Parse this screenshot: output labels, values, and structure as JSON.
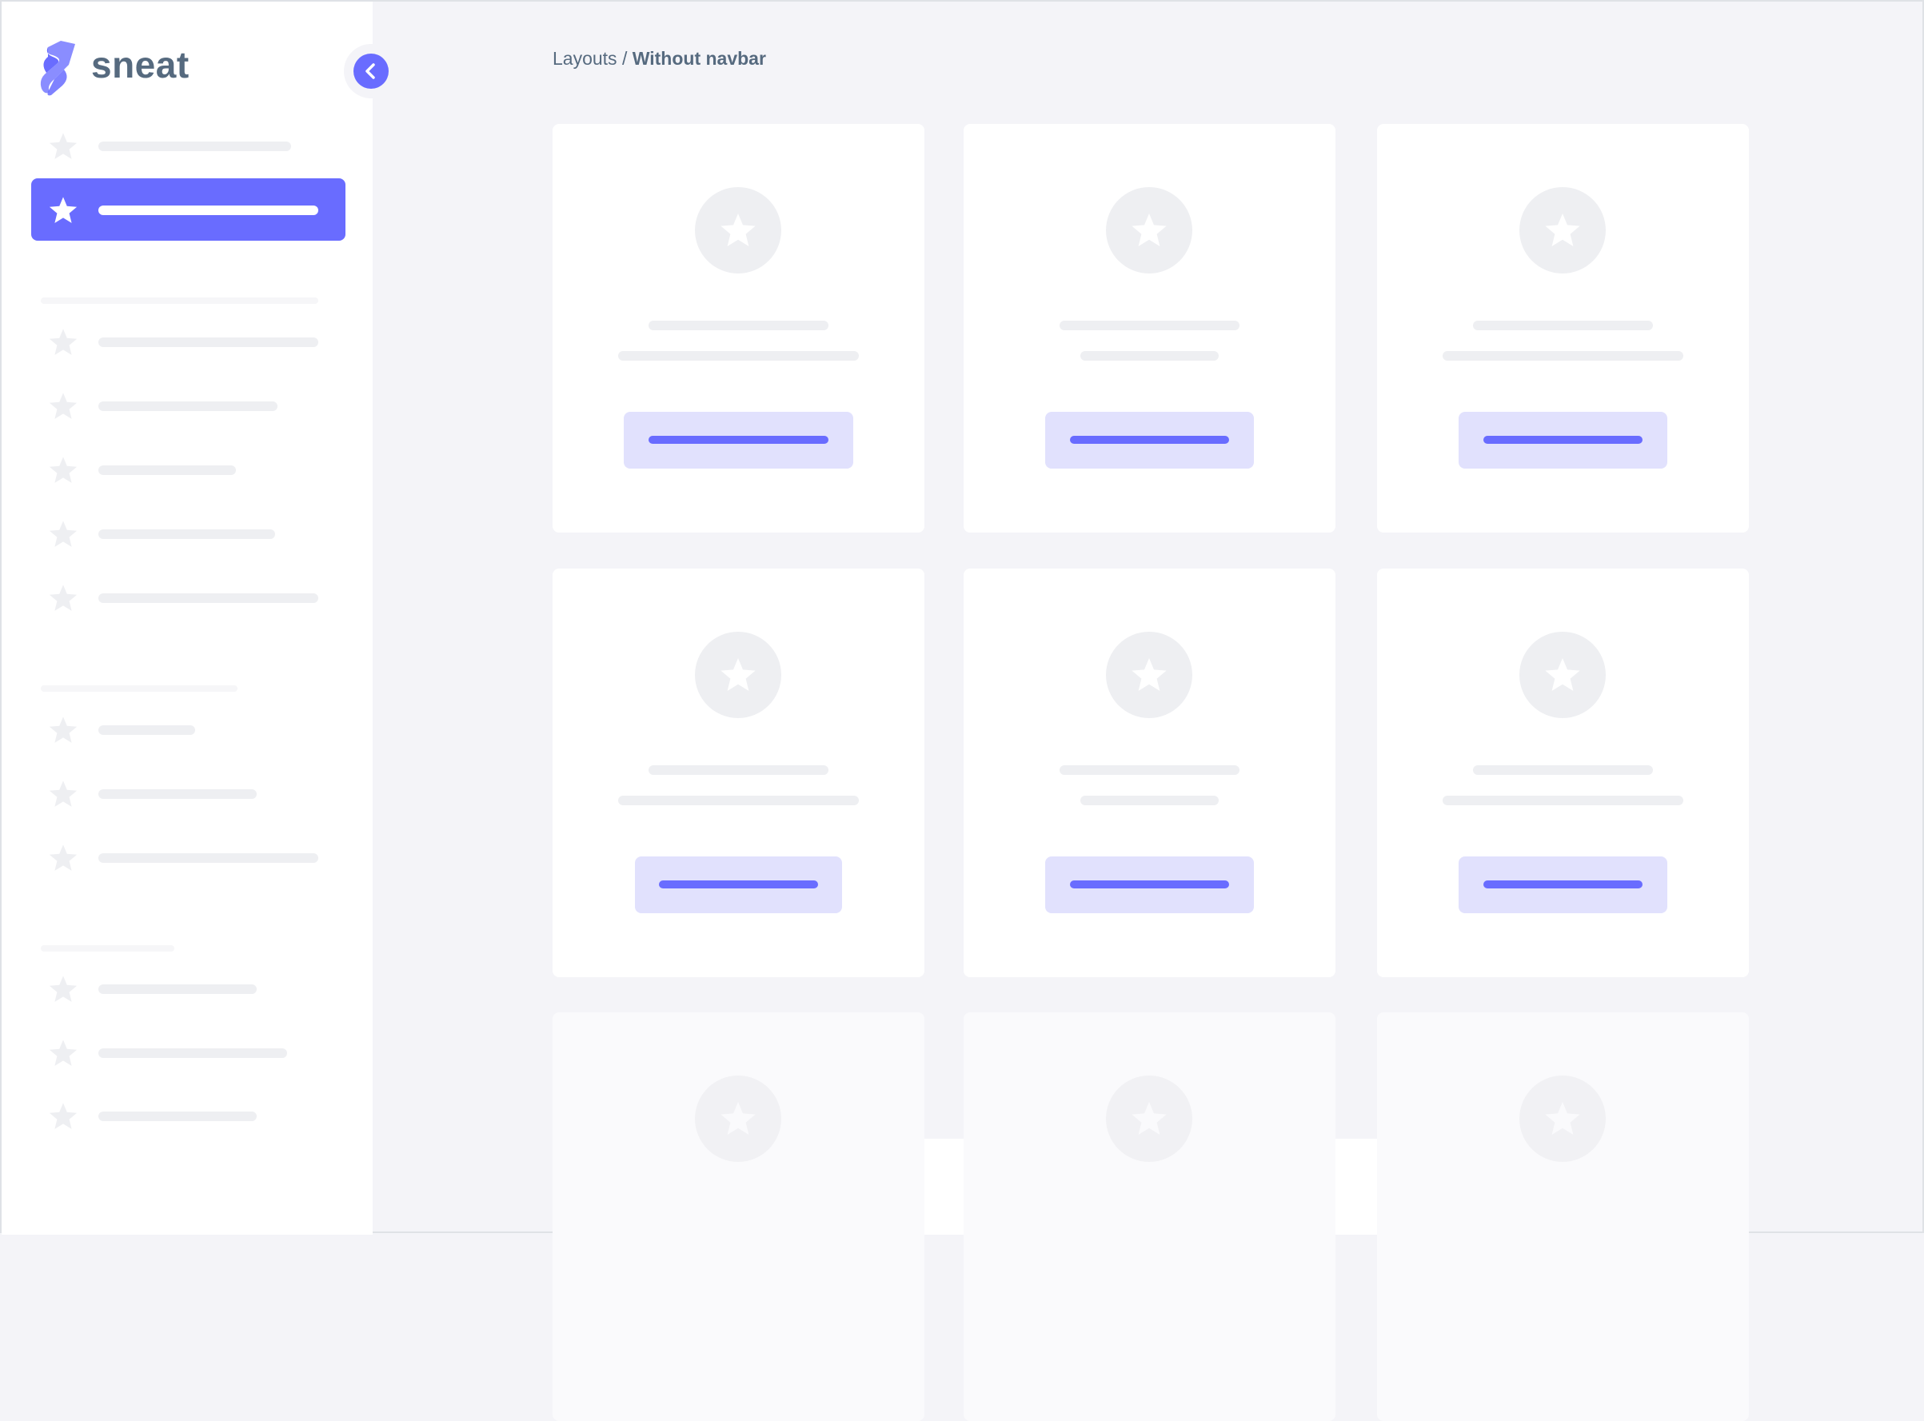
{
  "brand": {
    "name": "sneat",
    "logo_icon": "sneat-logo"
  },
  "sidebar": {
    "toggle_icon": "chevron-left-icon",
    "item_icon": "star-icon",
    "active_index": 1
  },
  "breadcrumb": {
    "parent": "Layouts",
    "separator": " / ",
    "current": "Without navbar"
  },
  "footer": {
    "icon": "heart-icon"
  },
  "colors": {
    "primary": "#696cff",
    "primary_light": "#e1e1fd",
    "placeholder": "#eeeff2",
    "text": "#566a7f",
    "background": "#f4f4f8"
  }
}
